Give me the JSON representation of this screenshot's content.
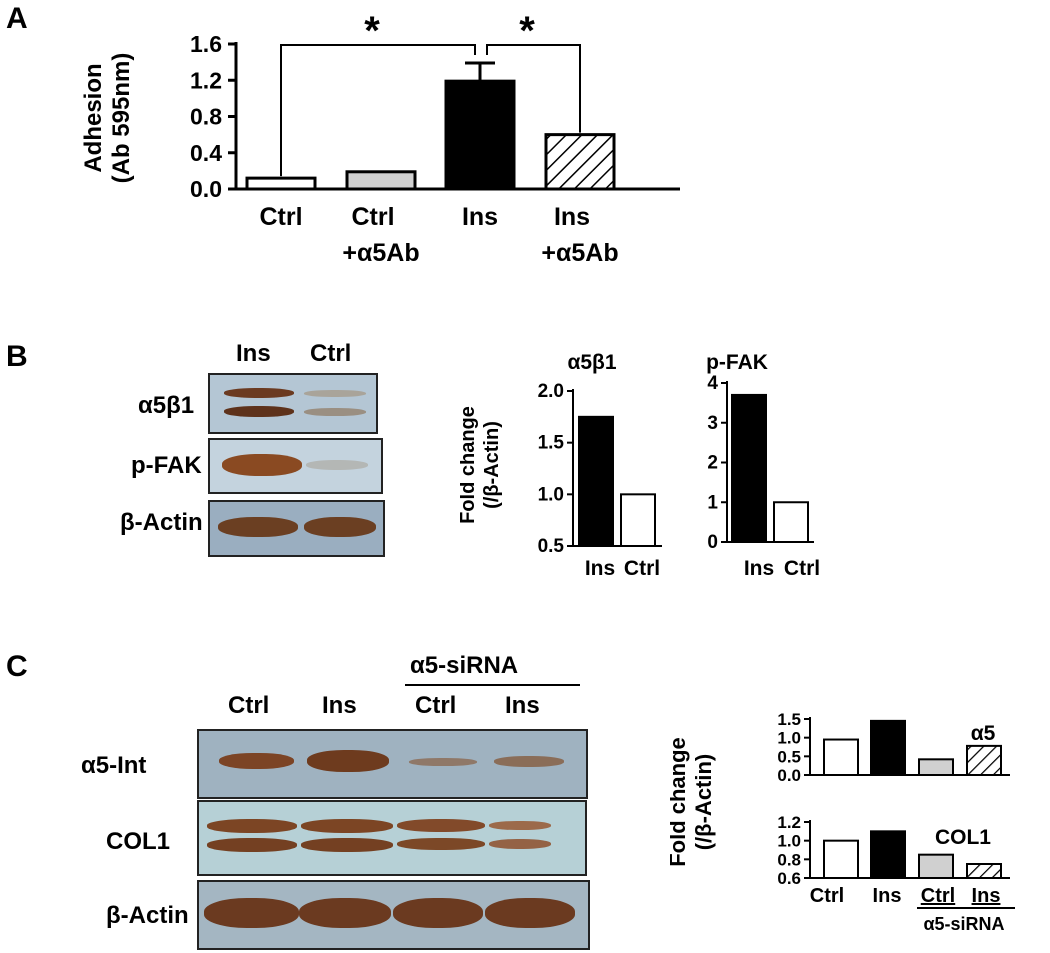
{
  "panels": {
    "a": "A",
    "b": "B",
    "c": "C"
  },
  "chart_a": {
    "type": "bar",
    "ylabel": [
      "Adhesion",
      "(Ab 595nm)"
    ],
    "yticks": [
      "0.0",
      "0.4",
      "0.8",
      "1.2",
      "1.6"
    ],
    "ylim": [
      0,
      1.6
    ],
    "categories": [
      [
        "Ctrl"
      ],
      [
        "Ctrl",
        "+α5Ab"
      ],
      [
        "Ins"
      ],
      [
        "Ins",
        "+α5Ab"
      ]
    ],
    "values": [
      0.12,
      0.19,
      1.19,
      0.6
    ],
    "error": [
      0,
      0,
      0.2,
      0
    ],
    "significance": "*"
  },
  "blot_b": {
    "lanes": [
      "Ins",
      "Ctrl"
    ],
    "rows": [
      "α5β1",
      "p-FAK",
      "β-Actin"
    ]
  },
  "chart_b": {
    "ylabel": [
      "Fold change",
      "(/β-Actin)"
    ],
    "alpha5b1": {
      "title": "α5β1",
      "yticks": [
        "0.5",
        "1.0",
        "1.5",
        "2.0"
      ],
      "ylim": [
        0.5,
        2.0
      ],
      "categories": [
        "Ins",
        "Ctrl"
      ],
      "values": [
        1.75,
        1.0
      ]
    },
    "pfak": {
      "title": "p-FAK",
      "yticks": [
        "0",
        "1",
        "2",
        "3",
        "4"
      ],
      "ylim": [
        0,
        4
      ],
      "categories": [
        "Ins",
        "Ctrl"
      ],
      "values": [
        3.7,
        1.0
      ]
    }
  },
  "blot_c": {
    "lanes": [
      "Ctrl",
      "Ins",
      "Ctrl",
      "Ins"
    ],
    "group": "α5-siRNA",
    "rows": [
      "α5-Int",
      "COL1",
      "β-Actin"
    ]
  },
  "chart_c": {
    "ylabel": [
      "Fold change",
      "(/β-Actin)"
    ],
    "alpha5": {
      "title": "α5",
      "yticks": [
        "0.0",
        "0.5",
        "1.0",
        "1.5"
      ],
      "ylim": [
        0,
        1.5
      ],
      "values": [
        0.95,
        1.45,
        0.42,
        0.78
      ]
    },
    "col1": {
      "title": "COL1",
      "yticks": [
        "0.6",
        "0.8",
        "1.0",
        "1.2"
      ],
      "ylim": [
        0.6,
        1.2
      ],
      "values": [
        1.0,
        1.1,
        0.85,
        0.75
      ]
    },
    "categories": [
      "Ctrl",
      "Ins",
      "Ctrl",
      "Ins"
    ],
    "group": "α5-siRNA"
  },
  "chart_data": [
    {
      "type": "bar",
      "categories": [
        "Ctrl",
        "Ctrl +α5Ab",
        "Ins",
        "Ins +α5Ab"
      ],
      "values": [
        0.12,
        0.19,
        1.19,
        0.6
      ],
      "ylabel": "Adhesion (Ab 595nm)",
      "ylim": [
        0,
        1.6
      ]
    },
    {
      "type": "bar",
      "title": "α5β1",
      "categories": [
        "Ins",
        "Ctrl"
      ],
      "values": [
        1.75,
        1.0
      ],
      "ylabel": "Fold change (/β-Actin)",
      "ylim": [
        0.5,
        2.0
      ]
    },
    {
      "type": "bar",
      "title": "p-FAK",
      "categories": [
        "Ins",
        "Ctrl"
      ],
      "values": [
        3.7,
        1.0
      ],
      "ylim": [
        0,
        4
      ]
    },
    {
      "type": "bar",
      "title": "α5",
      "categories": [
        "Ctrl",
        "Ins",
        "Ctrl",
        "Ins"
      ],
      "values": [
        0.95,
        1.45,
        0.42,
        0.78
      ],
      "ylabel": "Fold change (/β-Actin)",
      "ylim": [
        0,
        1.5
      ]
    },
    {
      "type": "bar",
      "title": "COL1",
      "categories": [
        "Ctrl",
        "Ins",
        "Ctrl",
        "Ins"
      ],
      "values": [
        1.0,
        1.1,
        0.85,
        0.75
      ],
      "ylim": [
        0.6,
        1.2
      ]
    }
  ]
}
